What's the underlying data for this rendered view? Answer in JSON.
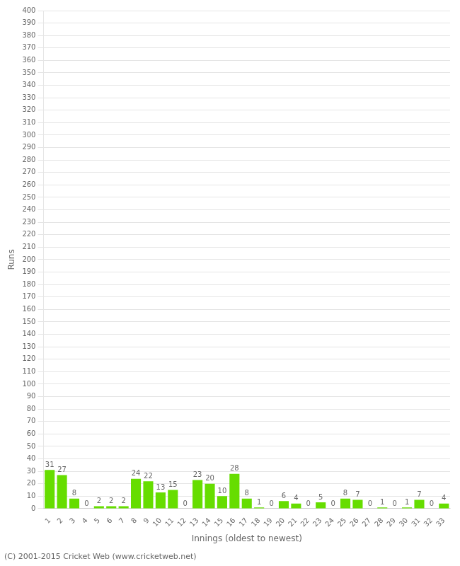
{
  "chart_data": {
    "type": "bar",
    "categories": [
      "1",
      "2",
      "3",
      "4",
      "5",
      "6",
      "7",
      "8",
      "9",
      "10",
      "11",
      "12",
      "13",
      "14",
      "15",
      "16",
      "17",
      "18",
      "19",
      "20",
      "21",
      "22",
      "23",
      "24",
      "25",
      "26",
      "27",
      "28",
      "29",
      "30",
      "31",
      "32",
      "33"
    ],
    "values": [
      31,
      27,
      8,
      0,
      2,
      2,
      2,
      24,
      22,
      13,
      15,
      0,
      23,
      20,
      10,
      28,
      8,
      1,
      0,
      6,
      4,
      0,
      5,
      0,
      8,
      7,
      0,
      1,
      0,
      1,
      7,
      0,
      4
    ],
    "color": "#66dd00",
    "xlabel": "Innings (oldest to newest)",
    "ylabel": "Runs",
    "ylim": [
      0,
      400
    ],
    "yticks": [
      0,
      10,
      20,
      30,
      40,
      50,
      60,
      70,
      80,
      90,
      100,
      110,
      120,
      130,
      140,
      150,
      160,
      170,
      180,
      190,
      200,
      210,
      220,
      230,
      240,
      250,
      260,
      270,
      280,
      290,
      300,
      310,
      320,
      330,
      340,
      350,
      360,
      370,
      380,
      390,
      400
    ],
    "grid": true,
    "data_labels": true,
    "annotations": [
      "(C) 2001-2015 Cricket Web (www.cricketweb.net)"
    ]
  }
}
